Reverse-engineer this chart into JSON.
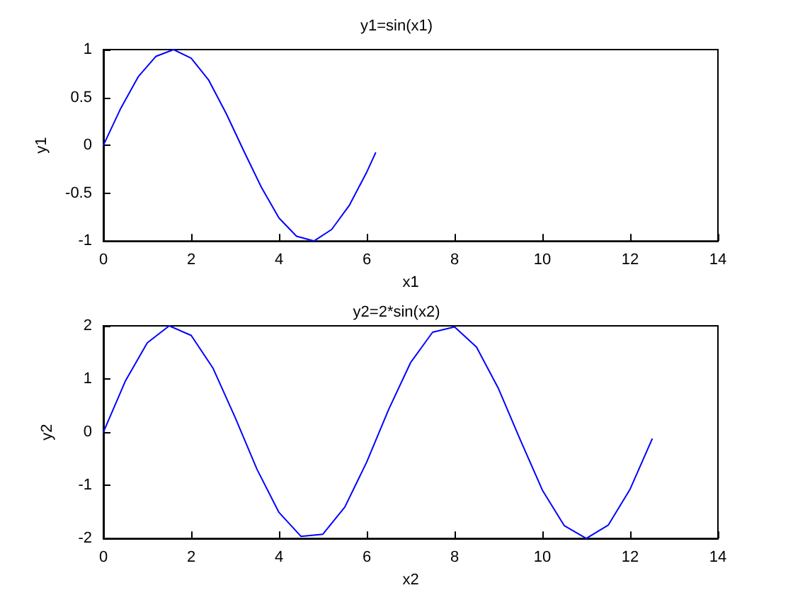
{
  "chart_data": [
    {
      "type": "line",
      "title": "y1=sin(x1)",
      "xlabel": "x1",
      "ylabel": "y1",
      "x": [
        0,
        0.4,
        0.8,
        1.2,
        1.6,
        2.0,
        2.4,
        2.8,
        3.2,
        3.6,
        4.0,
        4.4,
        4.8,
        5.2,
        5.6,
        6.0,
        6.2
      ],
      "series": [
        {
          "color": "#0000ff",
          "values": [
            0,
            0.39,
            0.72,
            0.93,
            1.0,
            0.91,
            0.68,
            0.33,
            -0.06,
            -0.44,
            -0.76,
            -0.95,
            -1.0,
            -0.88,
            -0.63,
            -0.28,
            -0.08
          ]
        }
      ],
      "xlim": [
        0,
        14
      ],
      "xticks": [
        0,
        2,
        4,
        6,
        8,
        10,
        12,
        14
      ],
      "ylim": [
        -1,
        1
      ],
      "yticks": [
        -1,
        -0.5,
        0,
        0.5,
        1
      ],
      "grid": false,
      "marker": "none",
      "line_style": "solid"
    },
    {
      "type": "line",
      "title": "y2=2*sin(x2)",
      "xlabel": "x2",
      "ylabel": "y2",
      "x": [
        0,
        0.5,
        1,
        1.5,
        2,
        2.5,
        3,
        3.5,
        4,
        4.5,
        5,
        5.5,
        6,
        6.5,
        7,
        7.5,
        8,
        8.5,
        9,
        9.5,
        10,
        10.5,
        11,
        11.5,
        12,
        12.5
      ],
      "series": [
        {
          "color": "#0000ff",
          "values": [
            0,
            0.96,
            1.68,
            2.0,
            1.82,
            1.2,
            0.28,
            -0.7,
            -1.51,
            -1.96,
            -1.92,
            -1.41,
            -0.56,
            0.43,
            1.31,
            1.88,
            1.98,
            1.6,
            0.82,
            -0.15,
            -1.09,
            -1.76,
            -2.0,
            -1.75,
            -1.07,
            -0.13
          ]
        }
      ],
      "xlim": [
        0,
        14
      ],
      "xticks": [
        0,
        2,
        4,
        6,
        8,
        10,
        12,
        14
      ],
      "ylim": [
        -2,
        2
      ],
      "yticks": [
        -2,
        -1,
        0,
        1,
        2
      ],
      "grid": false,
      "marker": "none",
      "line_style": "solid"
    }
  ]
}
